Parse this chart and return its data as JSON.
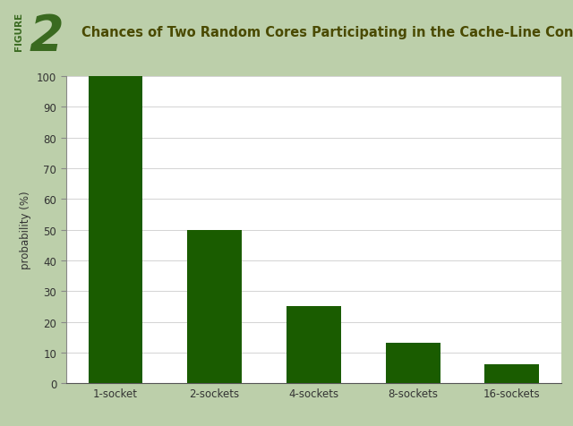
{
  "categories": [
    "1-socket",
    "2-sockets",
    "4-sockets",
    "8-sockets",
    "16-sockets"
  ],
  "values": [
    100,
    50,
    25,
    13.3,
    6.25
  ],
  "bar_color": "#1a5c00",
  "background_outer": "#bccfaa",
  "background_inner": "#ffffff",
  "title": "Chances of Two Random Cores Participating in the Cache-Line Contention",
  "title_color": "#4a4a00",
  "ylabel": "probability (%)",
  "ylim": [
    0,
    100
  ],
  "yticks": [
    0,
    10,
    20,
    30,
    40,
    50,
    60,
    70,
    80,
    90,
    100
  ],
  "title_fontsize": 10.5,
  "axis_label_fontsize": 8.5,
  "tick_fontsize": 8.5,
  "figure_label": "FIGURE",
  "figure_number": "2",
  "fig_label_bg": "#7aaa5a",
  "fig_label_text_color": "#3a6a20"
}
